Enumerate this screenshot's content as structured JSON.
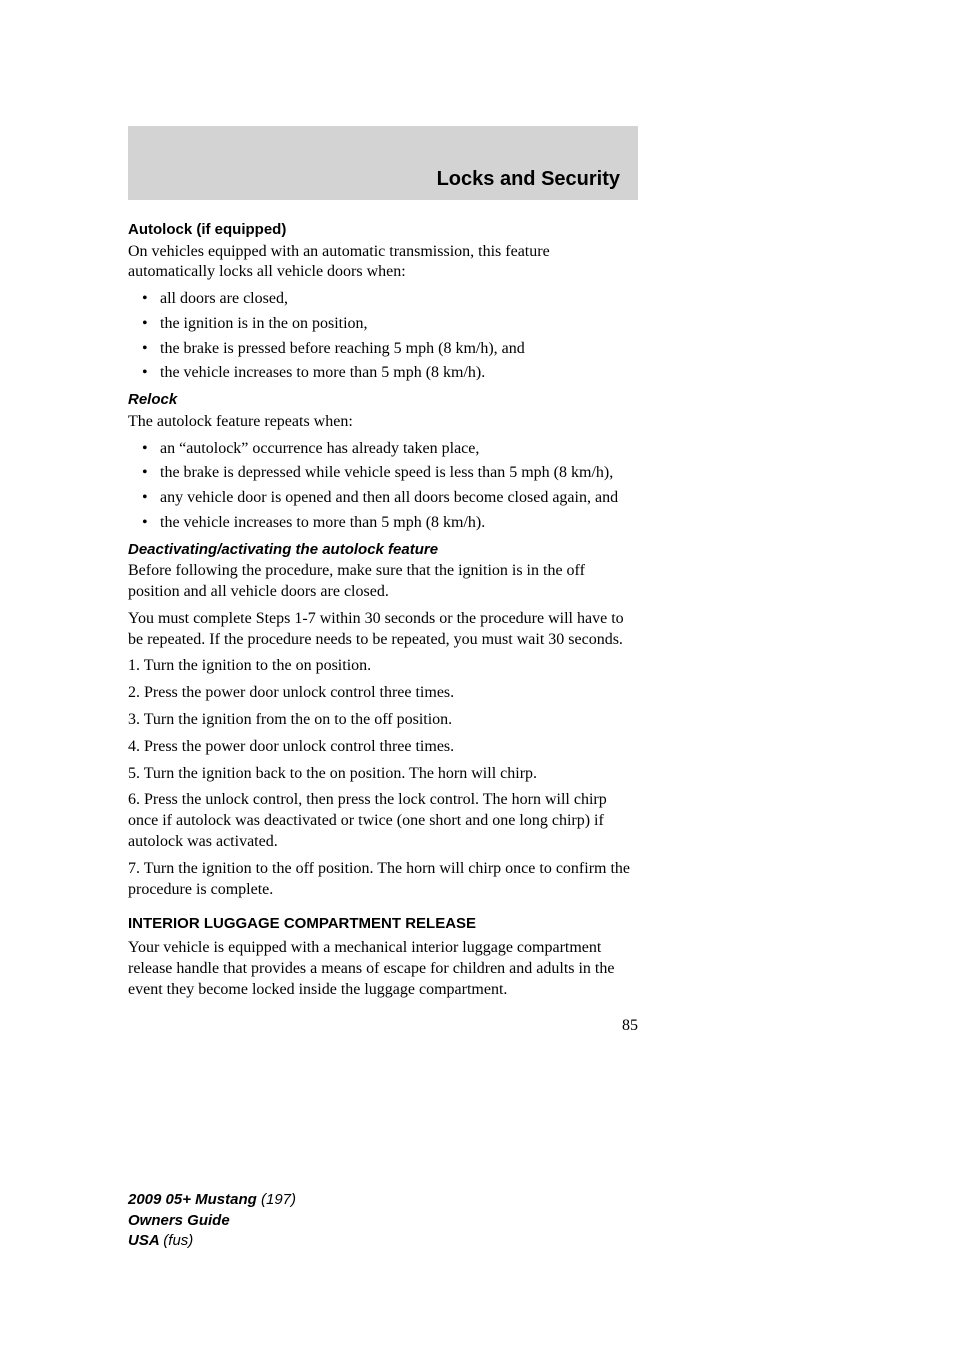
{
  "header": {
    "title": "Locks and Security"
  },
  "sections": {
    "autolock": {
      "title": "Autolock (if equipped)",
      "intro": "On vehicles equipped with an automatic transmission, this feature automatically locks all vehicle doors when:",
      "bullets": [
        "all doors are closed,",
        "the ignition is in the on position,",
        "the brake is pressed before reaching 5 mph (8 km/h), and",
        "the vehicle increases to more than 5 mph (8 km/h)."
      ]
    },
    "relock": {
      "title": "Relock",
      "intro": "The autolock feature repeats when:",
      "bullets": [
        "an “autolock” occurrence has already taken place,",
        "the brake is depressed while vehicle speed is less than 5 mph (8 km/h),",
        "any vehicle door is opened and then all doors become closed again, and",
        "the vehicle increases to more than 5 mph (8 km/h)."
      ]
    },
    "deactivate": {
      "title": "Deactivating/activating the autolock feature",
      "para1": "Before following the procedure, make sure that the ignition is in the off position and all vehicle doors are closed.",
      "para2": "You must complete Steps 1-7 within 30 seconds or the procedure will have to be repeated. If the procedure needs to be repeated, you must wait 30 seconds.",
      "steps": [
        "1. Turn the ignition to the on position.",
        "2. Press the power door unlock control three times.",
        "3. Turn the ignition from the on to the off position.",
        "4. Press the power door unlock control three times.",
        "5. Turn the ignition back to the on position. The horn will chirp.",
        "6. Press the unlock control, then press the lock control. The horn will chirp once if autolock was deactivated or twice (one short and one long chirp) if autolock was activated.",
        "7. Turn the ignition to the off position. The horn will chirp once to confirm the procedure is complete."
      ]
    },
    "interior": {
      "title": "INTERIOR LUGGAGE COMPARTMENT RELEASE",
      "para": "Your vehicle is equipped with a mechanical interior luggage compartment release handle that provides a means of escape for children and adults in the event they become locked inside the luggage compartment."
    }
  },
  "page_number": "85",
  "footer": {
    "l1b": "2009 05+ Mustang ",
    "l1i": "(197)",
    "l2b": "Owners Guide",
    "l3b": "USA ",
    "l3i": "(fus)"
  }
}
